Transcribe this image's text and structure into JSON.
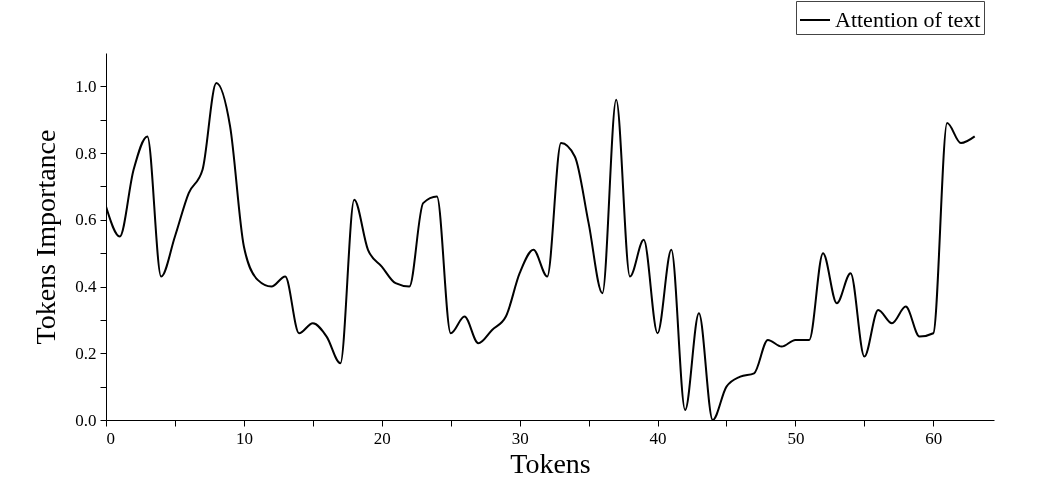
{
  "chart_data": {
    "type": "line",
    "xlabel": "Tokens",
    "ylabel": "Tokens Importance",
    "x": [
      0,
      1,
      2,
      3,
      4,
      5,
      6,
      7,
      8,
      9,
      10,
      11,
      12,
      13,
      14,
      15,
      16,
      17,
      18,
      19,
      20,
      21,
      22,
      23,
      24,
      25,
      26,
      27,
      28,
      29,
      30,
      31,
      32,
      33,
      34,
      35,
      36,
      37,
      38,
      39,
      40,
      41,
      42,
      43,
      44,
      45,
      46,
      47,
      48,
      49,
      50,
      51,
      52,
      53,
      54,
      55,
      56,
      57,
      58,
      59,
      60,
      61,
      62,
      63
    ],
    "series": [
      {
        "name": "Attention of text",
        "color": "#000000",
        "values": [
          0.64,
          0.55,
          0.75,
          0.85,
          0.43,
          0.55,
          0.68,
          0.75,
          1.01,
          0.88,
          0.52,
          0.42,
          0.4,
          0.43,
          0.26,
          0.29,
          0.25,
          0.17,
          0.66,
          0.51,
          0.46,
          0.41,
          0.4,
          0.65,
          0.67,
          0.26,
          0.31,
          0.23,
          0.27,
          0.31,
          0.44,
          0.51,
          0.43,
          0.83,
          0.79,
          0.59,
          0.38,
          0.96,
          0.43,
          0.54,
          0.26,
          0.51,
          0.03,
          0.32,
          0.0,
          0.1,
          0.13,
          0.14,
          0.24,
          0.22,
          0.24,
          0.24,
          0.5,
          0.35,
          0.44,
          0.19,
          0.33,
          0.29,
          0.34,
          0.25,
          0.26,
          0.89,
          0.83,
          0.85
        ]
      }
    ],
    "xlim": [
      0,
      64.4
    ],
    "xticks": [
      0,
      {
        "value": 5,
        "label": null
      },
      10,
      {
        "value": 15,
        "label": null
      },
      20,
      {
        "value": 25,
        "label": null
      },
      30,
      {
        "value": 35,
        "label": null
      },
      40,
      {
        "value": 45,
        "label": null
      },
      50,
      {
        "value": 55,
        "label": null
      },
      60
    ],
    "ylim": [
      0,
      1.1
    ],
    "yticks": [
      {
        "value": 0,
        "label": "0.0"
      },
      {
        "value": 0.1,
        "label": null
      },
      {
        "value": 0.2,
        "label": "0.2"
      },
      {
        "value": 0.3,
        "label": null
      },
      {
        "value": 0.4,
        "label": "0.4"
      },
      {
        "value": 0.5,
        "label": null
      },
      {
        "value": 0.6,
        "label": "0.6"
      },
      {
        "value": 0.7,
        "label": null
      },
      {
        "value": 0.8,
        "label": "0.8"
      },
      {
        "value": 0.9,
        "label": null
      },
      {
        "value": 1.0,
        "label": "1.0"
      }
    ],
    "grid": false,
    "legend": "top right",
    "marker": "none",
    "line_style": "solid"
  }
}
